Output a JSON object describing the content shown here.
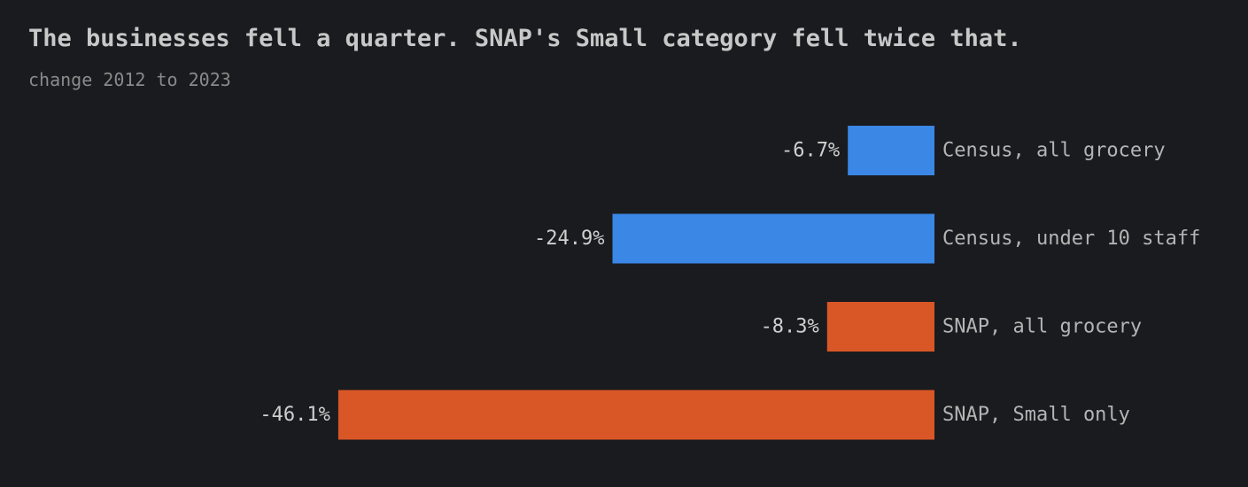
{
  "chart_data": {
    "type": "bar",
    "orientation": "horizontal",
    "title": "The businesses fell a quarter. SNAP's Small category fell twice that.",
    "subtitle": "change 2012 to 2023",
    "categories": [
      "Census, all grocery",
      "Census, under 10 staff",
      "SNAP, all grocery",
      "SNAP, Small only"
    ],
    "values": [
      -6.7,
      -24.9,
      -8.3,
      -46.1
    ],
    "value_labels": [
      "-6.7%",
      "-24.9%",
      "-8.3%",
      "-46.1%"
    ],
    "bar_colors": [
      "#3a87e6",
      "#3a87e6",
      "#d95727",
      "#d95727"
    ],
    "xlim": [
      -50,
      0
    ],
    "grid": false,
    "legend": "none"
  }
}
